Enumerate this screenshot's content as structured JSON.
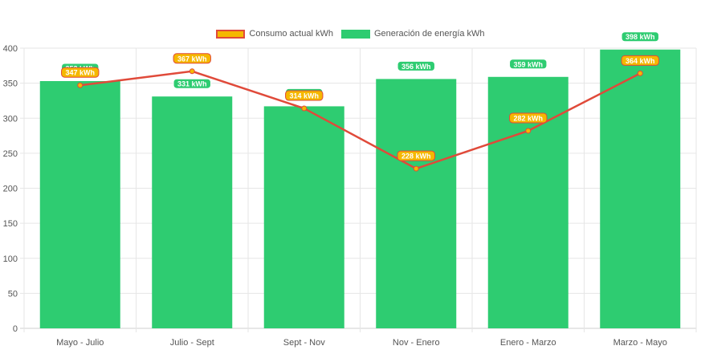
{
  "chart_data": {
    "type": "bar",
    "categories": [
      "Mayo - Julio",
      "Julio - Sept",
      "Sept - Nov",
      "Nov - Enero",
      "Enero - Marzo",
      "Marzo - Mayo"
    ],
    "series": [
      {
        "name": "Consumo actual kWh",
        "type": "line",
        "values": [
          347,
          367,
          314,
          228,
          282,
          364
        ],
        "labels": [
          "347 kWh",
          "367 kWh",
          "314 kWh",
          "228 kWh",
          "282 kWh",
          "364 kWh"
        ],
        "color": "#e04a3a",
        "fill": "#f5b800"
      },
      {
        "name": "Generación de energía kWh",
        "type": "bar",
        "values": [
          353,
          331,
          317,
          356,
          359,
          398
        ],
        "labels": [
          "353 kWh",
          "331 kWh",
          "317 kWh",
          "356 kWh",
          "359 kWh",
          "398 kWh"
        ],
        "color": "#2ecc71"
      }
    ],
    "ylim": [
      0,
      400
    ],
    "yticks": [
      0,
      50,
      100,
      150,
      200,
      250,
      300,
      350,
      400
    ],
    "grid": true,
    "legend": "top-center",
    "title": "",
    "xlabel": "",
    "ylabel": ""
  }
}
